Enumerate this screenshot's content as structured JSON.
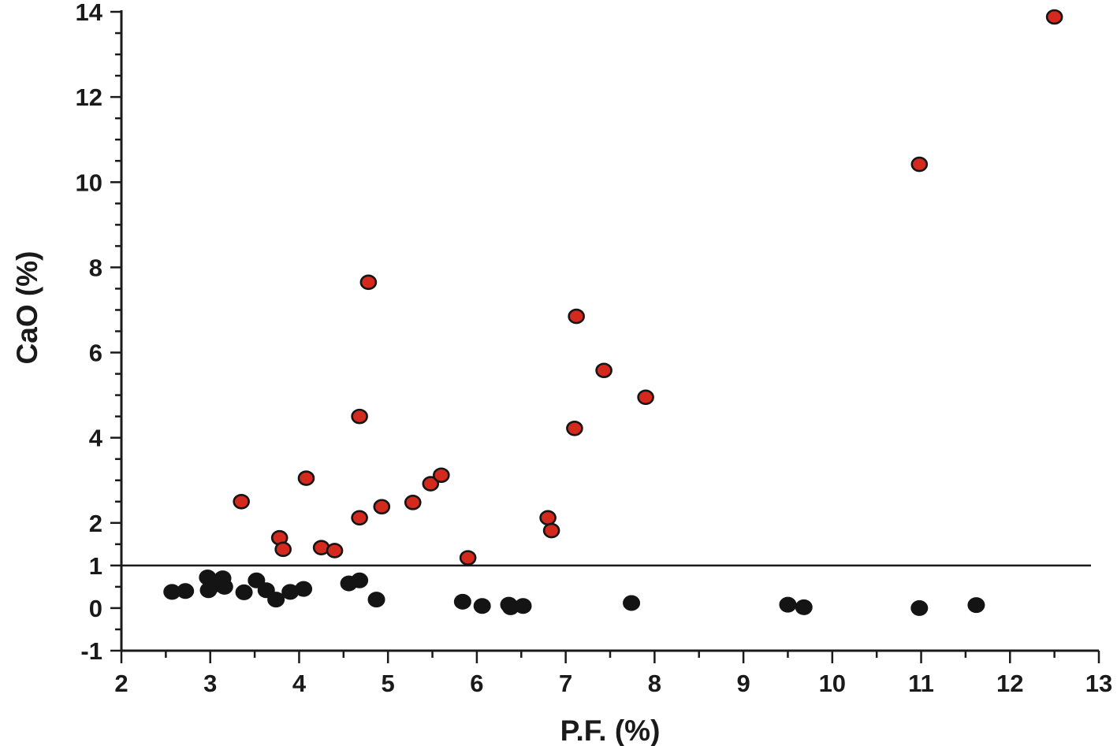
{
  "chart_data": {
    "type": "scatter",
    "title": "",
    "xlabel": "P.F. (%)",
    "ylabel": "CaO (%)",
    "xlim": [
      2,
      13
    ],
    "ylim": [
      -1,
      14
    ],
    "x_ticks": [
      2,
      3,
      4,
      5,
      6,
      7,
      8,
      9,
      10,
      11,
      12,
      13
    ],
    "y_ticks": [
      -1,
      0,
      1,
      2,
      4,
      6,
      8,
      10,
      12,
      14
    ],
    "x_tick_labels": [
      "2",
      "3",
      "4",
      "5",
      "6",
      "7",
      "8",
      "9",
      "10",
      "11",
      "12",
      "13"
    ],
    "y_tick_labels": [
      "-1",
      "0",
      "1",
      "2",
      "4",
      "6",
      "8",
      "10",
      "12",
      "14"
    ],
    "reference_line": {
      "y": 1,
      "x_range": [
        2,
        13
      ]
    },
    "grid": false,
    "legend": "none",
    "series": [
      {
        "color": "#d42a1e",
        "points": [
          [
            3.35,
            2.5
          ],
          [
            3.78,
            1.65
          ],
          [
            3.82,
            1.38
          ],
          [
            4.08,
            3.05
          ],
          [
            4.25,
            1.42
          ],
          [
            4.4,
            1.35
          ],
          [
            4.68,
            4.5
          ],
          [
            4.68,
            2.12
          ],
          [
            4.78,
            7.65
          ],
          [
            4.93,
            2.38
          ],
          [
            5.28,
            2.48
          ],
          [
            5.48,
            2.92
          ],
          [
            5.6,
            3.12
          ],
          [
            5.9,
            1.18
          ],
          [
            6.8,
            2.12
          ],
          [
            6.84,
            1.82
          ],
          [
            7.1,
            4.22
          ],
          [
            7.12,
            6.85
          ],
          [
            7.43,
            5.58
          ],
          [
            7.9,
            4.95
          ],
          [
            10.98,
            10.42
          ],
          [
            12.5,
            13.88
          ]
        ]
      },
      {
        "color": "#141414",
        "points": [
          [
            2.57,
            0.38
          ],
          [
            2.72,
            0.4
          ],
          [
            2.97,
            0.72
          ],
          [
            2.98,
            0.42
          ],
          [
            3.05,
            0.55
          ],
          [
            3.14,
            0.7
          ],
          [
            3.16,
            0.5
          ],
          [
            3.38,
            0.37
          ],
          [
            3.52,
            0.65
          ],
          [
            3.63,
            0.42
          ],
          [
            3.74,
            0.2
          ],
          [
            3.9,
            0.38
          ],
          [
            4.05,
            0.45
          ],
          [
            4.56,
            0.58
          ],
          [
            4.68,
            0.65
          ],
          [
            4.87,
            0.2
          ],
          [
            5.84,
            0.15
          ],
          [
            6.06,
            0.05
          ],
          [
            6.36,
            0.08
          ],
          [
            6.38,
            0.02
          ],
          [
            6.52,
            0.05
          ],
          [
            7.74,
            0.12
          ],
          [
            9.5,
            0.08
          ],
          [
            9.68,
            0.02
          ],
          [
            10.98,
            0.0
          ],
          [
            11.62,
            0.07
          ]
        ]
      }
    ]
  }
}
